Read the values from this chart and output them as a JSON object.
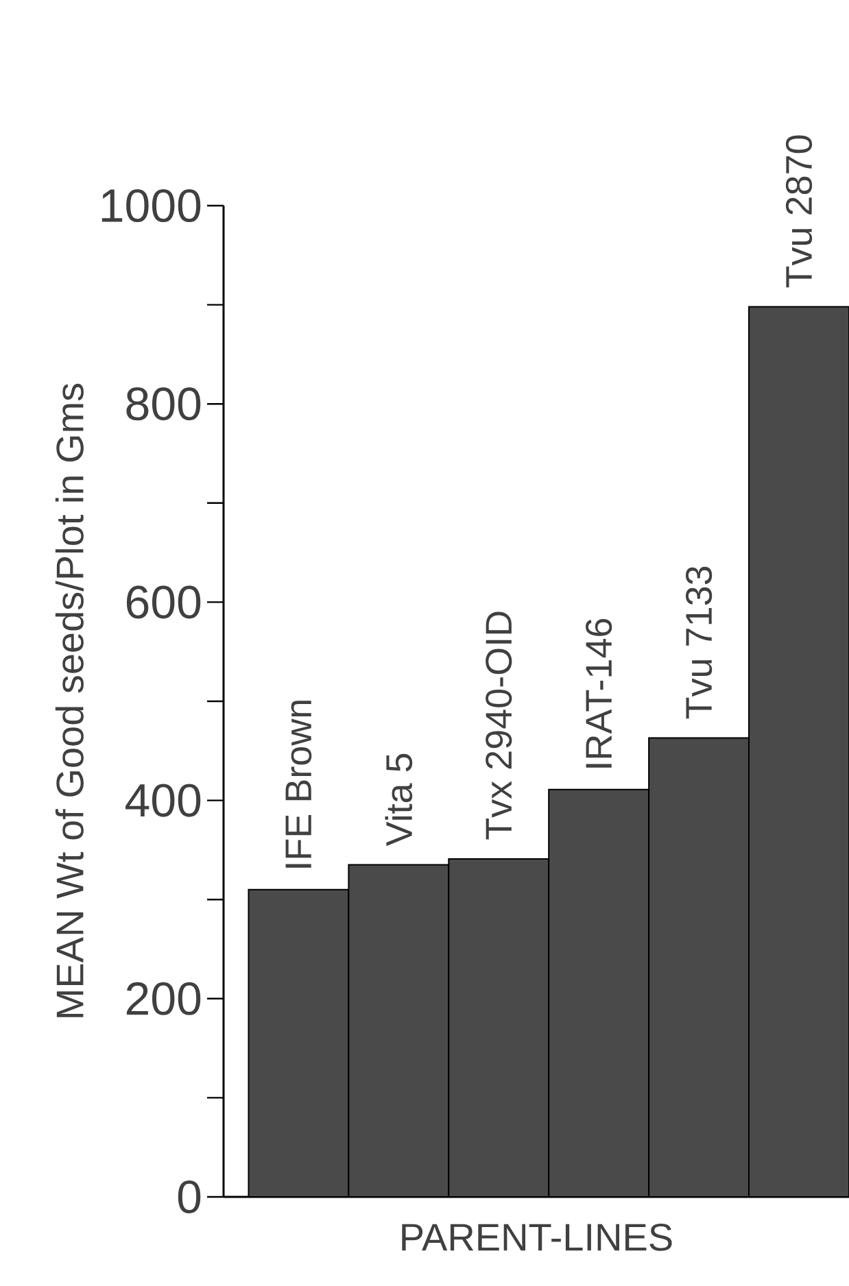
{
  "chart_data": {
    "type": "bar",
    "xlabel": "PARENT-LINES",
    "ylabel": "MEAN Wt of Good seeds/Plot in Gms",
    "categories": [
      "IFE Brown",
      "Vita 5",
      "Tvx 2940-OID",
      "IRAT-146",
      "Tvu 7133",
      "Tvu 2870"
    ],
    "values": [
      310,
      335,
      341,
      411,
      463,
      898
    ],
    "color": "#4a4a4a",
    "ylim": [
      0,
      1000
    ],
    "yticks": [
      0,
      {
        "value": 100,
        "label": null
      },
      200,
      {
        "value": 300,
        "label": null
      },
      400,
      {
        "value": 500,
        "label": null
      },
      600,
      {
        "value": 700,
        "label": null
      },
      800,
      {
        "value": 900,
        "label": null
      },
      1000
    ]
  }
}
